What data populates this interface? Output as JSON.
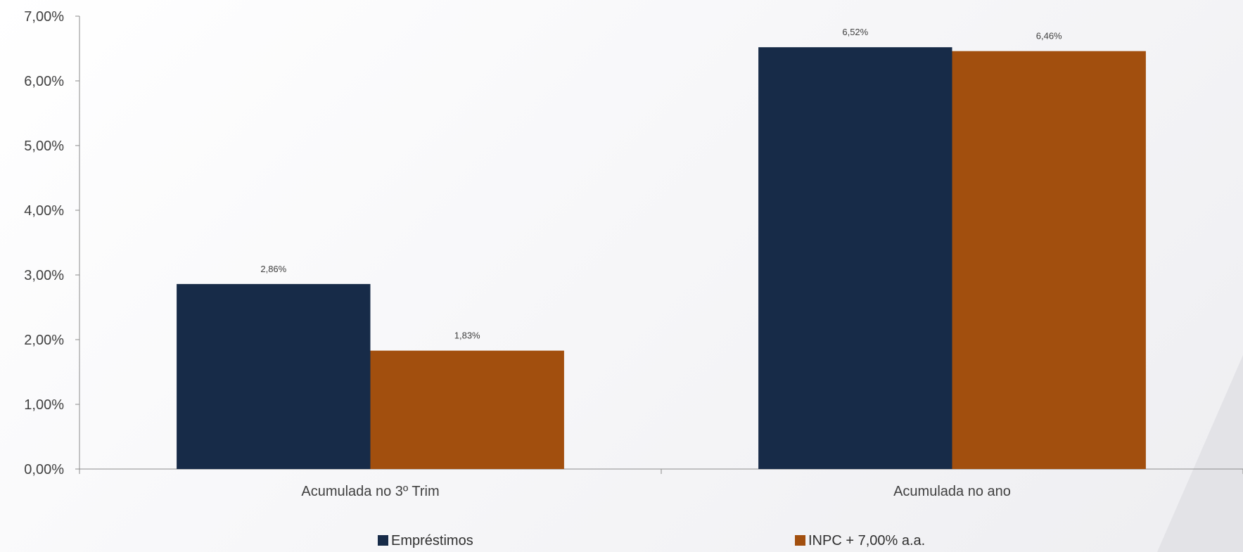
{
  "chart_data": {
    "type": "bar",
    "categories": [
      "Acumulada no 3º Trim",
      "Acumulada no ano"
    ],
    "series": [
      {
        "name": "Empréstimos",
        "values": [
          2.86,
          6.52
        ],
        "labels": [
          "2,86%",
          "6,52%"
        ],
        "color": "#172b48"
      },
      {
        "name": "INPC + 7,00% a.a.",
        "values": [
          1.83,
          6.46
        ],
        "labels": [
          "1,83%",
          "6,46%"
        ],
        "color": "#a24f0e"
      }
    ],
    "y_ticks": [
      {
        "value": 0,
        "label": "0,00%"
      },
      {
        "value": 1,
        "label": "1,00%"
      },
      {
        "value": 2,
        "label": "2,00%"
      },
      {
        "value": 3,
        "label": "3,00%"
      },
      {
        "value": 4,
        "label": "4,00%"
      },
      {
        "value": 5,
        "label": "5,00%"
      },
      {
        "value": 6,
        "label": "6,00%"
      },
      {
        "value": 7,
        "label": "7,00%"
      }
    ],
    "ylim": [
      0,
      7
    ],
    "grid": false,
    "legend_position": "bottom",
    "title": "",
    "xlabel": "",
    "ylabel": ""
  }
}
